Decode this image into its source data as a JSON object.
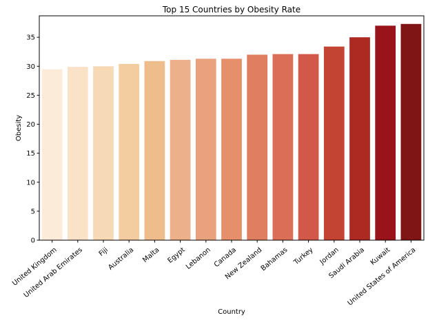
{
  "chart_data": {
    "type": "bar",
    "title": "Top 15 Countries by Obesity Rate",
    "xlabel": "Country",
    "ylabel": "Obesity",
    "categories": [
      "United Kingdom",
      "United Arab Emirates",
      "Fiji",
      "Australia",
      "Malta",
      "Egypt",
      "Lebanon",
      "Canada",
      "New Zealand",
      "Bahamas",
      "Turkey",
      "Jordan",
      "Saudi Arabia",
      "Kuwait",
      "United States of America"
    ],
    "values": [
      29.5,
      29.9,
      30.0,
      30.4,
      30.9,
      31.1,
      31.3,
      31.3,
      32.0,
      32.1,
      32.1,
      33.4,
      35.0,
      37.0,
      37.3
    ],
    "ylim": [
      0,
      38.7
    ],
    "yticks": [
      0,
      5,
      10,
      15,
      20,
      25,
      30,
      35
    ],
    "grid": false,
    "legend": "none",
    "colors": [
      "#fcebd9",
      "#f9e2c8",
      "#f6d9b5",
      "#f3cca0",
      "#efbd8c",
      "#ecb08a",
      "#eaa27e",
      "#e5906b",
      "#e07f60",
      "#db6e57",
      "#d2584a",
      "#c44433",
      "#ad2a22",
      "#98131a",
      "#801516"
    ]
  }
}
